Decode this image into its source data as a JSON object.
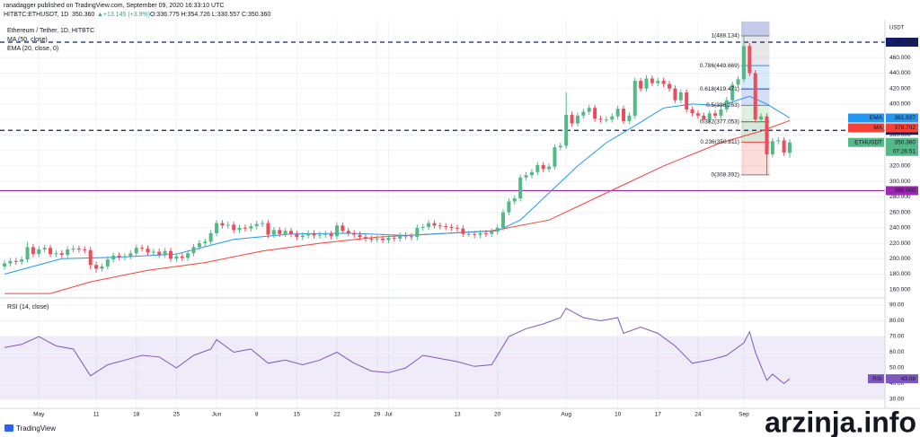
{
  "header": {
    "author": "ranadagger published on TradingView.com, September 09, 2020 16:33:10 UTC",
    "symbol": "HITBTC:ETHUSDT, 1D",
    "last": "350.360",
    "change": "▲+13.145 (+3.9%)",
    "ohlc": "O:336.775 H:354.726 L:330.557 C:350.360"
  },
  "logo": "TradingView",
  "watermark": "arzinja.info",
  "chart_data": [
    {
      "type": "candlestick",
      "title": "Ethereum / Tether, 1D, HITBTC",
      "currency": "USDT",
      "up_color": "#53b987",
      "down_color": "#eb4d5c",
      "xlim": [
        0,
        137
      ],
      "ylim": [
        140,
        480
      ],
      "xticks": [
        {
          "value": 6,
          "label": "May"
        },
        {
          "value": 16,
          "label": "11"
        },
        {
          "value": 23,
          "label": "18"
        },
        {
          "value": 30,
          "label": "25"
        },
        {
          "value": 37,
          "label": "Jun"
        },
        {
          "value": 44,
          "label": "8"
        },
        {
          "value": 51,
          "label": "15"
        },
        {
          "value": 58,
          "label": "22"
        },
        {
          "value": 65,
          "label": "29"
        },
        {
          "value": 67,
          "label": "Jul"
        },
        {
          "value": 79,
          "label": "13"
        },
        {
          "value": 86,
          "label": "20"
        },
        {
          "value": 98,
          "label": "Aug"
        },
        {
          "value": 107,
          "label": "10"
        },
        {
          "value": 114,
          "label": "17"
        },
        {
          "value": 121,
          "label": "24"
        },
        {
          "value": 129,
          "label": "Sep"
        }
      ],
      "yticks": [
        {
          "value": 140,
          "label": "140.000"
        },
        {
          "value": 160,
          "label": "160.000"
        },
        {
          "value": 180,
          "label": "180.000"
        },
        {
          "value": 200,
          "label": "200.000"
        },
        {
          "value": 220,
          "label": "220.000"
        },
        {
          "value": 240,
          "label": "240.000"
        },
        {
          "value": 260,
          "label": "260.000"
        },
        {
          "value": 280,
          "label": "280.000"
        },
        {
          "value": 300,
          "label": "300.000"
        },
        {
          "value": 320,
          "label": "320.000"
        },
        {
          "value": 340,
          "label": "340.000"
        },
        {
          "value": 360,
          "label": "360.000"
        },
        {
          "value": 380,
          "label": "380.000"
        },
        {
          "value": 400,
          "label": "400.000"
        },
        {
          "value": 420,
          "label": "420.000"
        },
        {
          "value": 440,
          "label": "440.000"
        },
        {
          "value": 460,
          "label": "460.000"
        }
      ],
      "grid": true,
      "candles": {
        "open": [
          190,
          194,
          197,
          196,
          199,
          215,
          206,
          212,
          214,
          206,
          207,
          205,
          212,
          213,
          212,
          211,
          192,
          187,
          190,
          199,
          204,
          202,
          203,
          207,
          214,
          213,
          208,
          209,
          205,
          210,
          200,
          203,
          201,
          207,
          215,
          220,
          222,
          233,
          246,
          243,
          244,
          237,
          240,
          239,
          242,
          245,
          246,
          231,
          237,
          232,
          236,
          232,
          228,
          230,
          233,
          230,
          231,
          232,
          229,
          243,
          236,
          233,
          231,
          228,
          226,
          225,
          226,
          224,
          227,
          226,
          230,
          229,
          228,
          240,
          241,
          246,
          243,
          242,
          241,
          240,
          239,
          232,
          232,
          231,
          233,
          232,
          235,
          240,
          260,
          274,
          278,
          305,
          308,
          312,
          321,
          316,
          319,
          344,
          346,
          386,
          375,
          385,
          390,
          395,
          381,
          380,
          380,
          384,
          394,
          378,
          385,
          430,
          420,
          433,
          427,
          430,
          426,
          420,
          405,
          415,
          393,
          388,
          385,
          380,
          388,
          385,
          393,
          405,
          425,
          432,
          475,
          440,
          380,
          384,
          335,
          352,
          353,
          336.775
        ],
        "high": [
          198,
          201,
          201,
          203,
          222,
          219,
          216,
          218,
          218,
          211,
          211,
          216,
          217,
          217,
          216,
          215,
          196,
          194,
          203,
          208,
          208,
          207,
          211,
          218,
          218,
          217,
          213,
          213,
          214,
          214,
          207,
          207,
          211,
          219,
          224,
          226,
          237,
          250,
          250,
          248,
          248,
          244,
          244,
          246,
          249,
          250,
          250,
          241,
          241,
          240,
          240,
          236,
          234,
          237,
          237,
          235,
          236,
          236,
          247,
          247,
          240,
          237,
          235,
          232,
          230,
          230,
          230,
          231,
          231,
          234,
          234,
          233,
          244,
          245,
          250,
          250,
          247,
          246,
          245,
          244,
          243,
          236,
          236,
          237,
          237,
          239,
          244,
          264,
          278,
          282,
          309,
          312,
          316,
          325,
          325,
          323,
          348,
          350,
          415,
          390,
          389,
          394,
          399,
          399,
          385,
          384,
          388,
          398,
          398,
          389,
          434,
          434,
          437,
          437,
          434,
          434,
          430,
          424,
          419,
          419,
          397,
          392,
          389,
          392,
          392,
          397,
          409,
          429,
          436,
          488.134,
          479,
          444,
          388,
          388,
          356,
          357,
          357,
          354.726
        ],
        "low": [
          186,
          190,
          192,
          192,
          195,
          202,
          202,
          208,
          202,
          202,
          201,
          201,
          208,
          208,
          207,
          186,
          182,
          183,
          186,
          195,
          198,
          198,
          199,
          203,
          209,
          204,
          204,
          201,
          201,
          196,
          196,
          197,
          197,
          203,
          211,
          216,
          218,
          229,
          239,
          239,
          233,
          233,
          235,
          235,
          238,
          241,
          227,
          227,
          228,
          228,
          228,
          224,
          224,
          226,
          226,
          226,
          227,
          225,
          225,
          232,
          229,
          227,
          224,
          222,
          221,
          221,
          220,
          220,
          222,
          222,
          225,
          224,
          224,
          236,
          237,
          239,
          238,
          237,
          236,
          235,
          228,
          228,
          227,
          227,
          228,
          228,
          231,
          236,
          256,
          270,
          274,
          301,
          304,
          308,
          312,
          312,
          315,
          340,
          342,
          371,
          371,
          381,
          386,
          377,
          376,
          376,
          376,
          380,
          374,
          374,
          381,
          416,
          416,
          423,
          423,
          422,
          416,
          401,
          401,
          389,
          384,
          381,
          376,
          376,
          381,
          381,
          389,
          401,
          421,
          428,
          436,
          376,
          376,
          308.392,
          331,
          348,
          333,
          330.557
        ],
        "close": [
          194,
          197,
          196,
          199,
          215,
          206,
          212,
          214,
          206,
          207,
          205,
          212,
          213,
          212,
          211,
          192,
          187,
          190,
          199,
          204,
          202,
          203,
          207,
          214,
          213,
          208,
          209,
          205,
          210,
          200,
          203,
          201,
          207,
          215,
          220,
          222,
          233,
          246,
          243,
          244,
          237,
          240,
          239,
          242,
          245,
          246,
          231,
          237,
          232,
          236,
          232,
          228,
          230,
          233,
          230,
          231,
          232,
          229,
          243,
          236,
          233,
          231,
          228,
          226,
          225,
          226,
          224,
          227,
          226,
          230,
          229,
          228,
          240,
          241,
          246,
          243,
          242,
          241,
          240,
          239,
          232,
          232,
          231,
          233,
          232,
          235,
          240,
          260,
          274,
          278,
          305,
          308,
          312,
          321,
          316,
          319,
          344,
          346,
          386,
          375,
          385,
          390,
          395,
          381,
          380,
          380,
          384,
          394,
          378,
          385,
          430,
          420,
          433,
          427,
          430,
          426,
          420,
          405,
          415,
          393,
          388,
          385,
          380,
          388,
          385,
          393,
          405,
          425,
          432,
          475,
          440,
          380,
          384,
          335,
          352,
          353,
          337.215,
          350.36
        ]
      },
      "series": [
        {
          "name": "MA (50, close)",
          "color": "#f44336",
          "x": [
            0,
            8,
            15,
            25,
            35,
            45,
            55,
            65,
            75,
            85,
            95,
            105,
            115,
            125,
            132,
            137
          ],
          "values": [
            155,
            155,
            170,
            185,
            195,
            210,
            220,
            228,
            232,
            236,
            250,
            285,
            320,
            350,
            365,
            378.702
          ]
        },
        {
          "name": "EMA (20, close, 0)",
          "color": "#2196f3",
          "x": [
            0,
            10,
            20,
            30,
            40,
            50,
            60,
            70,
            80,
            86,
            90,
            95,
            100,
            105,
            110,
            115,
            120,
            125,
            130,
            133,
            137
          ],
          "values": [
            180,
            200,
            202,
            206,
            225,
            232,
            233,
            230,
            234,
            236,
            250,
            285,
            320,
            350,
            372,
            395,
            400,
            398,
            410,
            400,
            381.937
          ]
        }
      ],
      "levels": [
        {
          "value": 480,
          "label": "480.000",
          "color": "#131d6b",
          "style": "dashed"
        },
        {
          "value": 366,
          "label": "366.000",
          "color": "#131d6b",
          "style": "dashed"
        },
        {
          "value": 288,
          "label": "288.000",
          "color": "#9c27b0",
          "style": "solid"
        }
      ],
      "badges": [
        {
          "name": "EMA",
          "value": 381.937,
          "label": "381.937",
          "color": "#2196f3"
        },
        {
          "name": "MA",
          "value": 378.702,
          "label": "378.702",
          "color": "#f44336"
        },
        {
          "name": "ETHUSDT",
          "value": 350.36,
          "label": "350.360",
          "color": "#53b987",
          "countdown": "07:26:51"
        }
      ],
      "fib": {
        "x": [
          129,
          133
        ],
        "levels": [
          {
            "value": 488.134,
            "label": "1(488.134)",
            "color": "#787b86"
          },
          {
            "value": 449.669,
            "label": "0.786(449.669)",
            "color": "#2196f3"
          },
          {
            "value": 419.471,
            "label": "0.618(419.471)",
            "color": "#1848cc"
          },
          {
            "value": 398.263,
            "label": "0.5(398.263)",
            "color": "#4caf50"
          },
          {
            "value": 377.053,
            "label": "0.382(377.053)",
            "color": "#2e7d32"
          },
          {
            "value": 350.811,
            "label": "0.236(350.811)",
            "color": "#f44336"
          },
          {
            "value": 308.392,
            "label": "0(308.392)",
            "color": "#787b86"
          }
        ]
      }
    },
    {
      "type": "line",
      "title": "RSI (14, close)",
      "color": "#7e57c2",
      "xlim": [
        0,
        137
      ],
      "ylim": [
        30,
        90
      ],
      "band": [
        30,
        70
      ],
      "yticks": [
        {
          "value": 30,
          "label": "30.00"
        },
        {
          "value": 40,
          "label": "40.00"
        },
        {
          "value": 50,
          "label": "50.00"
        },
        {
          "value": 60,
          "label": "60.00"
        },
        {
          "value": 70,
          "label": "70.00"
        },
        {
          "value": 80,
          "label": "80.00"
        },
        {
          "value": 90,
          "label": "90.00"
        }
      ],
      "x": [
        0,
        3,
        6,
        9,
        12,
        15,
        18,
        21,
        24,
        27,
        30,
        33,
        36,
        37,
        40,
        43,
        46,
        49,
        52,
        55,
        58,
        61,
        64,
        67,
        70,
        73,
        76,
        79,
        82,
        85,
        88,
        91,
        94,
        97,
        98,
        101,
        104,
        107,
        108,
        111,
        114,
        117,
        120,
        123,
        126,
        129,
        130,
        131,
        133,
        134,
        136,
        137
      ],
      "values": [
        63,
        65,
        70,
        64,
        62,
        45,
        52,
        55,
        58,
        57,
        50,
        58,
        62,
        68,
        60,
        62,
        53,
        55,
        52,
        55,
        60,
        53,
        48,
        47,
        50,
        58,
        56,
        54,
        51,
        52,
        70,
        75,
        78,
        82,
        88,
        82,
        80,
        82,
        72,
        76,
        72,
        64,
        53,
        55,
        58,
        66,
        73,
        60,
        42,
        46,
        40,
        43.08
      ],
      "badge": {
        "name": "RSI",
        "value": 43.08,
        "label": "43.08"
      }
    }
  ]
}
